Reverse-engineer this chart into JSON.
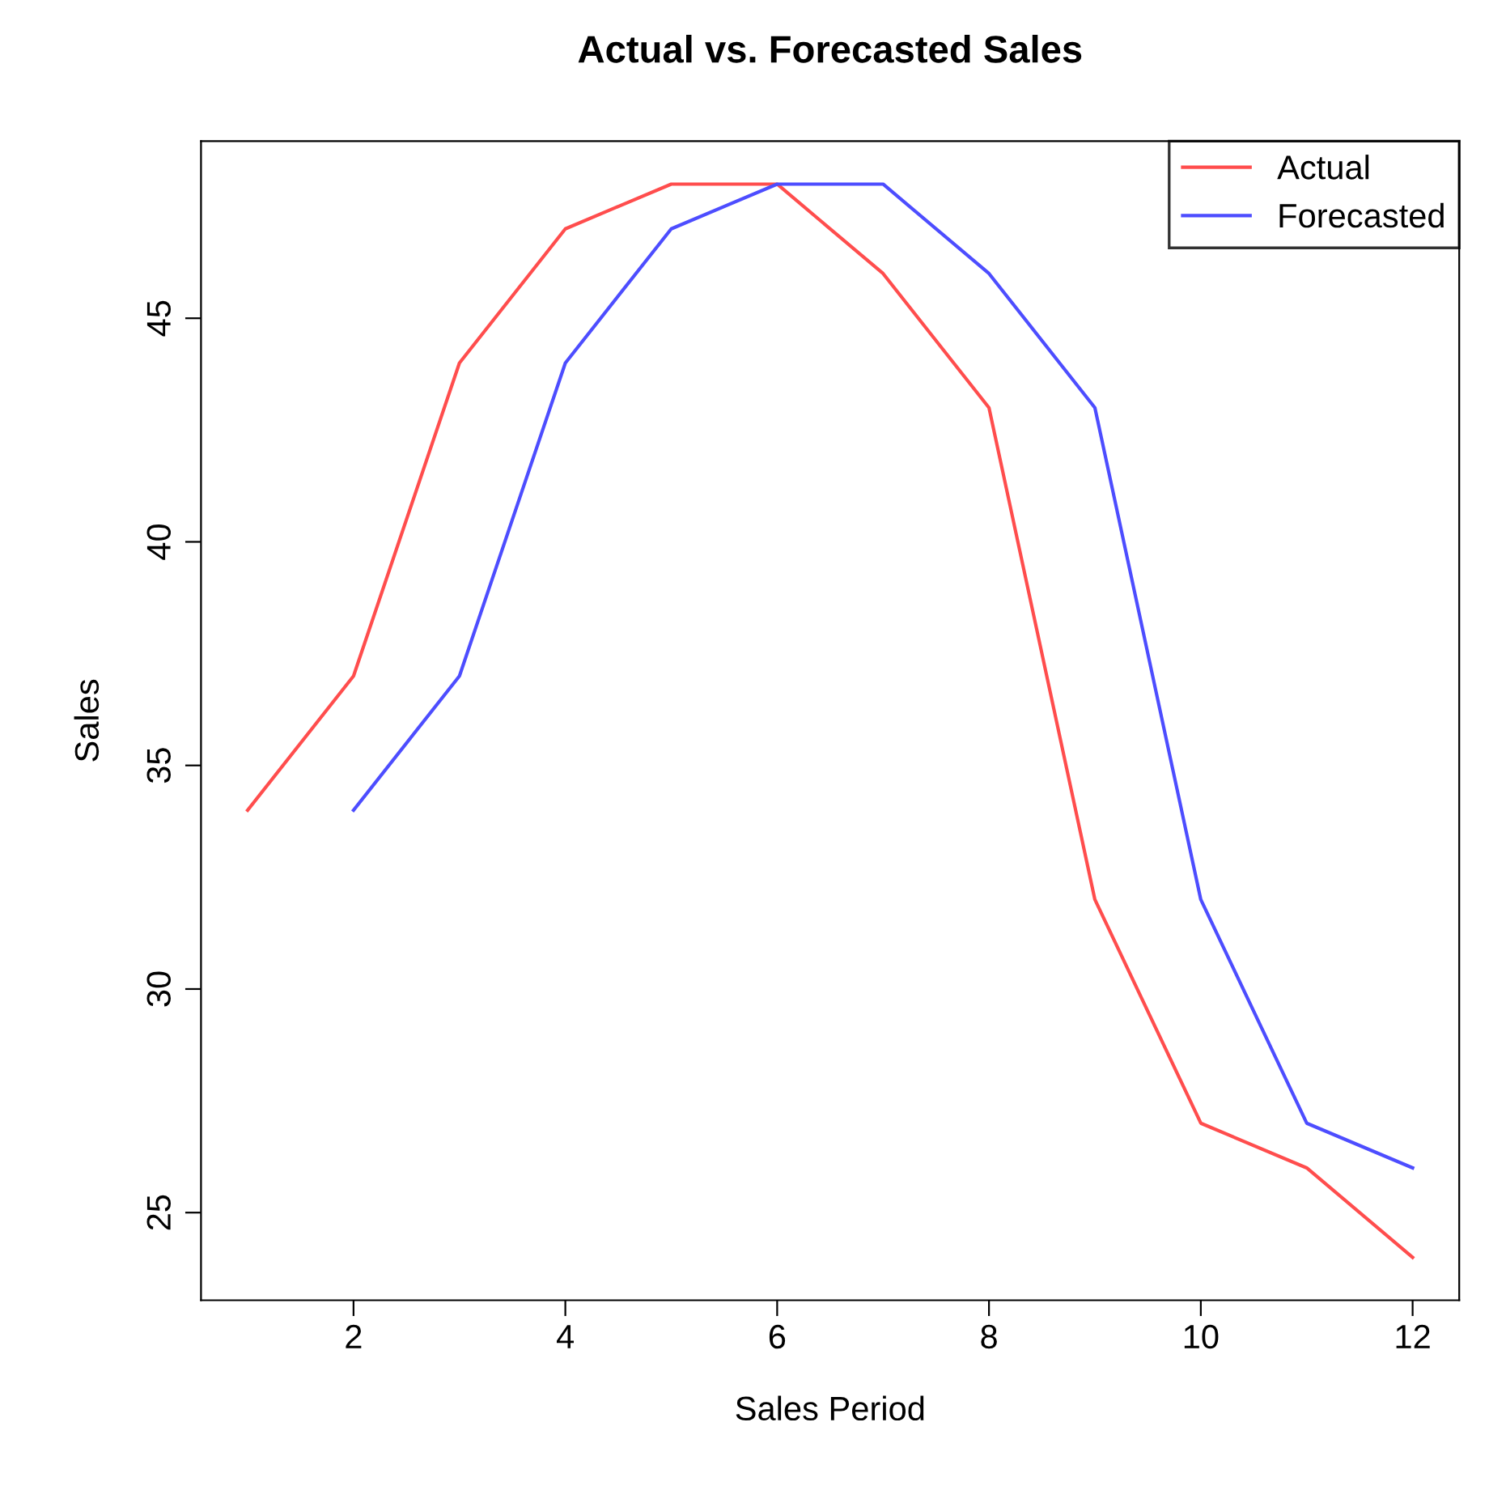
{
  "chart_data": {
    "type": "line",
    "title": "Actual vs. Forecasted Sales",
    "xlabel": "Sales Period",
    "ylabel": "Sales",
    "series": [
      {
        "name": "Actual",
        "color": "#ff4d4d",
        "x": [
          1,
          2,
          3,
          4,
          5,
          6,
          7,
          8,
          9,
          10,
          11,
          12
        ],
        "values": [
          34,
          37,
          44,
          47,
          48,
          48,
          46,
          43,
          32,
          27,
          26,
          24
        ]
      },
      {
        "name": "Forecasted",
        "color": "#4d4dff",
        "x": [
          2,
          3,
          4,
          5,
          6,
          7,
          8,
          9,
          10,
          11,
          12
        ],
        "values": [
          34,
          37,
          44,
          47,
          48,
          48,
          46,
          43,
          32,
          27,
          26
        ]
      }
    ],
    "xlim": [
      0.56,
      12.44
    ],
    "ylim": [
      23.04,
      48.96
    ],
    "xticks": [
      2,
      4,
      6,
      8,
      10,
      12
    ],
    "yticks": [
      25,
      30,
      35,
      40,
      45
    ],
    "grid": false,
    "legend": "top right",
    "marker": "none",
    "line_style": "solid"
  }
}
